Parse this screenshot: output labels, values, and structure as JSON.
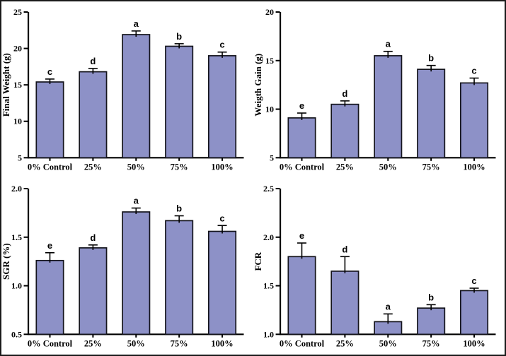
{
  "figure": {
    "background": "#ffffff",
    "border_color": "#1b1b1b",
    "bar_fill": "#8d91c7",
    "bar_stroke": "#14141c",
    "axis_color": "#000000",
    "text_color": "#000000"
  },
  "chart_data": [
    {
      "id": "final-weight",
      "type": "bar",
      "title": "",
      "xlabel": "",
      "ylabel": "Final Weight (g)",
      "categories": [
        "0% Control",
        "25%",
        "50%",
        "75%",
        "100%"
      ],
      "values": [
        15.4,
        16.8,
        21.9,
        20.3,
        19.0
      ],
      "errors": [
        0.4,
        0.45,
        0.5,
        0.35,
        0.5
      ],
      "letters": [
        "c",
        "d",
        "a",
        "b",
        "c"
      ],
      "ylim": [
        5,
        25
      ],
      "yticks": [
        5,
        10,
        15,
        20,
        25
      ],
      "ytick_labels": [
        "5",
        "10",
        "15",
        "20",
        "25"
      ],
      "grid": false,
      "legend": false
    },
    {
      "id": "weight-gain",
      "type": "bar",
      "title": "",
      "xlabel": "",
      "ylabel": "Weigth Gain (g)",
      "categories": [
        "0% Control",
        "25%",
        "50%",
        "75%",
        "100%"
      ],
      "values": [
        9.1,
        10.5,
        15.5,
        14.1,
        12.7
      ],
      "errors": [
        0.5,
        0.35,
        0.45,
        0.4,
        0.5
      ],
      "letters": [
        "e",
        "d",
        "a",
        "b",
        "c"
      ],
      "ylim": [
        5,
        20
      ],
      "yticks": [
        5,
        10,
        15,
        20
      ],
      "ytick_labels": [
        "5",
        "10",
        "15",
        "20"
      ],
      "grid": false,
      "legend": false
    },
    {
      "id": "sgr",
      "type": "bar",
      "title": "",
      "xlabel": "",
      "ylabel": "SGR (%)",
      "categories": [
        "0% Control",
        "25%",
        "50%",
        "75%",
        "100%"
      ],
      "values": [
        1.26,
        1.39,
        1.76,
        1.67,
        1.56
      ],
      "errors": [
        0.08,
        0.03,
        0.04,
        0.05,
        0.06
      ],
      "letters": [
        "e",
        "d",
        "a",
        "b",
        "c"
      ],
      "ylim": [
        0.5,
        2.0
      ],
      "yticks": [
        0.5,
        1.0,
        1.5,
        2.0
      ],
      "ytick_labels": [
        "0.5",
        "1.0",
        "1.5",
        "2.0"
      ],
      "grid": false,
      "legend": false
    },
    {
      "id": "fcr",
      "type": "bar",
      "title": "",
      "xlabel": "",
      "ylabel": "FCR",
      "categories": [
        "0% Control",
        "25%",
        "50%",
        "75%",
        "100%"
      ],
      "values": [
        1.8,
        1.65,
        1.13,
        1.27,
        1.45
      ],
      "errors": [
        0.14,
        0.15,
        0.08,
        0.035,
        0.025
      ],
      "letters": [
        "e",
        "d",
        "a",
        "b",
        "c"
      ],
      "ylim": [
        1.0,
        2.5
      ],
      "yticks": [
        1.0,
        1.5,
        2.0,
        2.5
      ],
      "ytick_labels": [
        "1.0",
        "1.5",
        "2.0",
        "2.5"
      ],
      "grid": false,
      "legend": false
    }
  ]
}
